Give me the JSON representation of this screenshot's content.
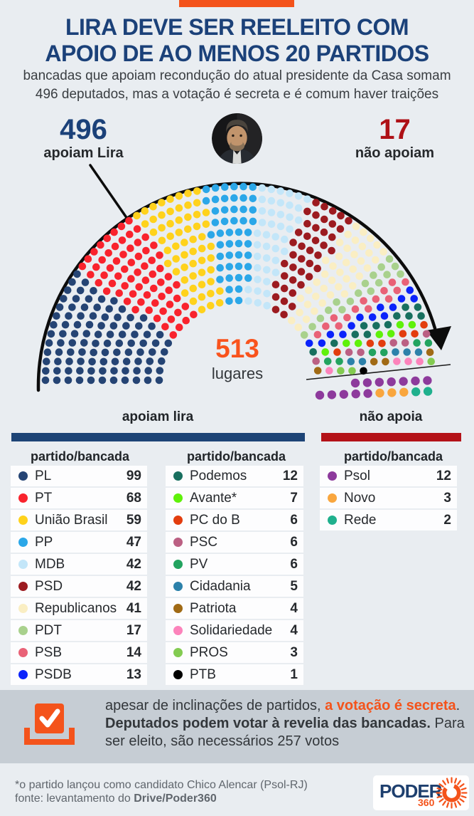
{
  "theme": {
    "background": "#e9edf1",
    "accent_orange": "#f4531b",
    "navy": "#1b4179",
    "dark_red": "#ae1117",
    "support_bar_color": "#1d4476",
    "oppose_bar_color": "#b41218",
    "note_background": "#c6cdd4"
  },
  "header": {
    "title": "LIRA DEVE SER REELEITO COM\nAPOIO DE AO MENOS 20 PARTIDOS",
    "subtitle": "bancadas que apoiam recondução do atual presidente da Casa somam\n496 deputados, mas a votação é secreta e é comum haver traições"
  },
  "stats": {
    "support_value": "496",
    "support_label": "apoiam Lira",
    "oppose_value": "17",
    "oppose_label": "não apoiam"
  },
  "center": {
    "value": "513",
    "label": "lugares"
  },
  "chart_data": {
    "type": "parliament",
    "title": "Composição da Câmara por apoio a Lira",
    "total_seats": 513,
    "support_total": 496,
    "oppose_total": 17,
    "support_groups": [
      {
        "name": "PL",
        "seats": 99,
        "color": "#254474"
      },
      {
        "name": "PT",
        "seats": 68,
        "color": "#f9232d"
      },
      {
        "name": "União Brasil",
        "seats": 59,
        "color": "#ffd21c"
      },
      {
        "name": "PP",
        "seats": 47,
        "color": "#2ba7e8"
      },
      {
        "name": "MDB",
        "seats": 42,
        "color": "#c3e6f9"
      },
      {
        "name": "PSD",
        "seats": 42,
        "color": "#9c1b20"
      },
      {
        "name": "Republicanos",
        "seats": 41,
        "color": "#faeec3"
      },
      {
        "name": "PDT",
        "seats": 17,
        "color": "#a9d18d"
      },
      {
        "name": "PSB",
        "seats": 14,
        "color": "#e96277"
      },
      {
        "name": "PSDB",
        "seats": 13,
        "color": "#0b23fb"
      },
      {
        "name": "Podemos",
        "seats": 12,
        "color": "#186f5f"
      },
      {
        "name": "Avante*",
        "seats": 7,
        "color": "#5ff10a"
      },
      {
        "name": "PC do B",
        "seats": 6,
        "color": "#e33d0e"
      },
      {
        "name": "PSC",
        "seats": 6,
        "color": "#bb6083"
      },
      {
        "name": "PV",
        "seats": 6,
        "color": "#22a35f"
      },
      {
        "name": "Cidadania",
        "seats": 5,
        "color": "#2c81aa"
      },
      {
        "name": "Patriota",
        "seats": 4,
        "color": "#a06a15"
      },
      {
        "name": "Solidariedade",
        "seats": 4,
        "color": "#fc83bb"
      },
      {
        "name": "PROS",
        "seats": 3,
        "color": "#83cb51"
      },
      {
        "name": "PTB",
        "seats": 1,
        "color": "#000000"
      }
    ],
    "oppose_groups": [
      {
        "name": "Psol",
        "seats": 12,
        "color": "#8d3a9c"
      },
      {
        "name": "Novo",
        "seats": 3,
        "color": "#f9a63e"
      },
      {
        "name": "Rede",
        "seats": 2,
        "color": "#1fb08d"
      }
    ]
  },
  "tables": {
    "support_header": "apoiam lira",
    "oppose_header": "não apoia",
    "column_header": "partido/bancada"
  },
  "note": {
    "seg1": "apesar de inclinações de partidos, ",
    "seg2": "a votação é secreta",
    "seg3": ". ",
    "seg4": "Deputados podem votar à revelia das bancadas.",
    "seg5": " Para ser eleito, são necessários 257 votos"
  },
  "footer": {
    "line1": "*o partido lançou como candidato Chico Alencar (Psol-RJ)",
    "line2_prefix": "fonte: levantamento do ",
    "line2_bold": "Drive/Poder360",
    "logo_text": "PODER",
    "logo_sub": "360"
  }
}
